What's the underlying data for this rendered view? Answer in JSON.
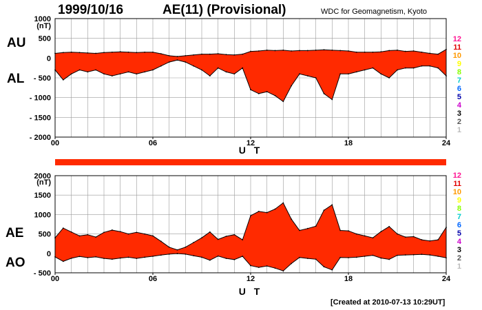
{
  "header": {
    "date": "1999/10/16",
    "title": "AE(11) (Provisional)",
    "source": "WDC for Geomagnetism, Kyoto"
  },
  "footer": {
    "created": "[Created at 2010-07-13 10:29UT]"
  },
  "panel_labels": {
    "au": "AU",
    "al": "AL",
    "ae": "AE",
    "ao": "AO"
  },
  "colors": {
    "fill": "#ff2a00",
    "line": "#000000",
    "grid": "#9a9a9a"
  },
  "station_legend": {
    "labels": [
      "12",
      "11",
      "10",
      "9",
      "8",
      "7",
      "6",
      "5",
      "4",
      "3",
      "2",
      "1"
    ],
    "colors": [
      "#ff1493",
      "#e00000",
      "#ff9900",
      "#ffff00",
      "#88ff00",
      "#00cccc",
      "#0066ff",
      "#0000aa",
      "#cc00cc",
      "#000000",
      "#555555",
      "#bbbbbb"
    ]
  },
  "chart_data": [
    {
      "type": "area",
      "title": "AU / AL",
      "xlabel": "U T",
      "ylabel": "(nT)",
      "xlim": [
        0,
        24
      ],
      "ylim": [
        -2000,
        1000
      ],
      "xticks": [
        "00",
        "06",
        "12",
        "18",
        "24"
      ],
      "yticks": [
        "1000",
        "500",
        "0",
        "- 500",
        "- 1000",
        "- 1500",
        "- 2000"
      ],
      "grid": true,
      "x": [
        0,
        0.5,
        1,
        1.5,
        2,
        2.5,
        3,
        3.5,
        4,
        4.5,
        5,
        5.5,
        6,
        6.5,
        7,
        7.5,
        8,
        8.5,
        9,
        9.5,
        10,
        10.5,
        11,
        11.5,
        12,
        12.5,
        13,
        13.5,
        14,
        14.5,
        15,
        15.5,
        16,
        16.5,
        17,
        17.5,
        18,
        18.5,
        19,
        19.5,
        20,
        20.5,
        21,
        21.5,
        22,
        22.5,
        23,
        23.5,
        24
      ],
      "series": [
        {
          "name": "AU",
          "values": [
            120,
            140,
            150,
            140,
            130,
            120,
            140,
            150,
            160,
            150,
            140,
            150,
            150,
            110,
            60,
            40,
            60,
            80,
            100,
            100,
            110,
            90,
            80,
            100,
            170,
            180,
            200,
            190,
            200,
            180,
            190,
            190,
            200,
            210,
            200,
            190,
            180,
            150,
            150,
            150,
            160,
            190,
            200,
            170,
            180,
            150,
            120,
            100,
            220
          ]
        },
        {
          "name": "AL",
          "values": [
            -300,
            -550,
            -400,
            -300,
            -350,
            -300,
            -400,
            -450,
            -400,
            -350,
            -400,
            -350,
            -300,
            -200,
            -100,
            -50,
            -100,
            -200,
            -300,
            -450,
            -250,
            -350,
            -400,
            -250,
            -800,
            -900,
            -850,
            -950,
            -1100,
            -700,
            -400,
            -450,
            -500,
            -900,
            -1050,
            -400,
            -400,
            -350,
            -300,
            -250,
            -400,
            -500,
            -300,
            -250,
            -250,
            -200,
            -200,
            -250,
            -450
          ]
        }
      ]
    },
    {
      "type": "area",
      "title": "AE / AO",
      "xlabel": "U T",
      "ylabel": "(nT)",
      "xlim": [
        0,
        24
      ],
      "ylim": [
        -500,
        2000
      ],
      "xticks": [
        "00",
        "06",
        "12",
        "18",
        "24"
      ],
      "yticks": [
        "2000",
        "1500",
        "1000",
        "500",
        "0",
        "- 500"
      ],
      "grid": true,
      "x": [
        0,
        0.5,
        1,
        1.5,
        2,
        2.5,
        3,
        3.5,
        4,
        4.5,
        5,
        5.5,
        6,
        6.5,
        7,
        7.5,
        8,
        8.5,
        9,
        9.5,
        10,
        10.5,
        11,
        11.5,
        12,
        12.5,
        13,
        13.5,
        14,
        14.5,
        15,
        15.5,
        16,
        16.5,
        17,
        17.5,
        18,
        18.5,
        19,
        19.5,
        20,
        20.5,
        21,
        21.5,
        22,
        22.5,
        23,
        23.5,
        24
      ],
      "series": [
        {
          "name": "AE",
          "values": [
            400,
            650,
            550,
            450,
            480,
            420,
            540,
            600,
            560,
            500,
            540,
            500,
            450,
            310,
            160,
            90,
            160,
            280,
            400,
            550,
            360,
            440,
            480,
            350,
            970,
            1080,
            1050,
            1140,
            1300,
            880,
            590,
            640,
            700,
            1110,
            1250,
            590,
            580,
            500,
            450,
            400,
            560,
            690,
            500,
            420,
            430,
            350,
            320,
            350,
            670
          ]
        },
        {
          "name": "AO",
          "values": [
            -90,
            -205,
            -125,
            -80,
            -110,
            -90,
            -130,
            -150,
            -120,
            -100,
            -130,
            -100,
            -75,
            -45,
            -20,
            -5,
            -20,
            -60,
            -100,
            -175,
            -70,
            -130,
            -160,
            -75,
            -315,
            -360,
            -325,
            -380,
            -450,
            -260,
            -105,
            -130,
            -150,
            -345,
            -425,
            -105,
            -110,
            -100,
            -75,
            -50,
            -120,
            -155,
            -50,
            -40,
            -35,
            -25,
            -40,
            -75,
            -115
          ]
        }
      ]
    }
  ]
}
